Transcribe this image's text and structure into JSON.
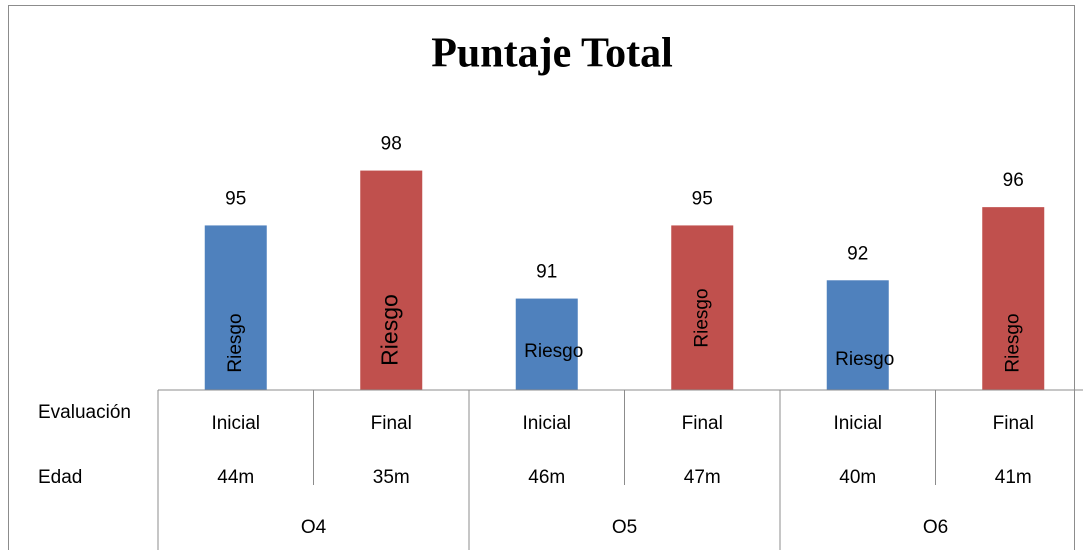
{
  "chart_data": {
    "type": "bar",
    "title": "Puntaje Total",
    "values": [
      95,
      98,
      91,
      95,
      92,
      96
    ],
    "colors": [
      "#4f81bd",
      "#c0504d",
      "#4f81bd",
      "#c0504d",
      "#4f81bd",
      "#c0504d"
    ],
    "bar_labels": [
      "Riesgo",
      "Riesgo",
      "Riesgo",
      "Riesgo",
      "Riesgo",
      "Riesgo"
    ],
    "bar_label_rotated": [
      true,
      true,
      false,
      true,
      false,
      true
    ],
    "ylim": [
      86,
      100
    ],
    "row_headers": [
      "Evaluación",
      "Edad"
    ],
    "evaluacion": [
      "Inicial",
      "Final",
      "Inicial",
      "Final",
      "Inicial",
      "Final"
    ],
    "edad": [
      "44m",
      "35m",
      "46m",
      "47m",
      "40m",
      "41m"
    ],
    "groups": [
      "O4",
      "O5",
      "O6"
    ]
  }
}
